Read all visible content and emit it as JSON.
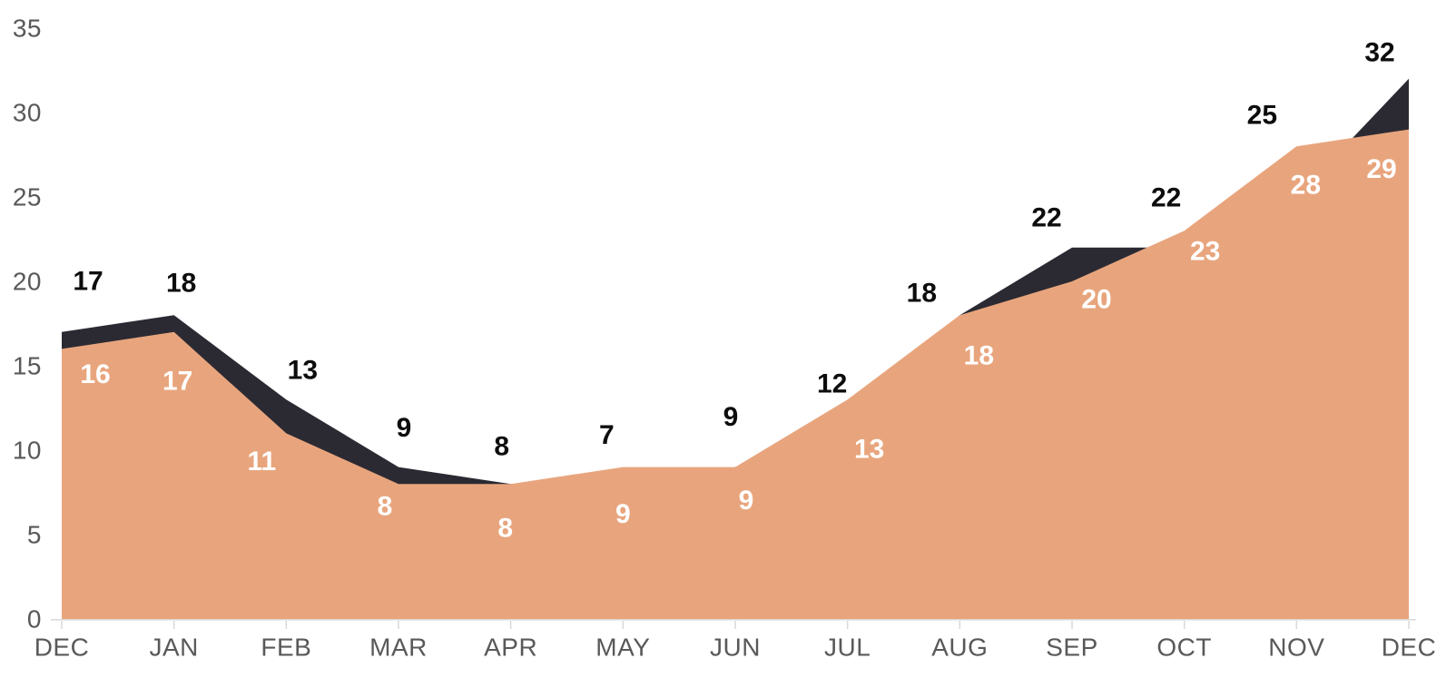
{
  "chart_data": {
    "type": "area",
    "subtype": "overlapping",
    "title": "",
    "xlabel": "",
    "ylabel": "",
    "categories": [
      "DEC",
      "JAN",
      "FEB",
      "MAR",
      "APR",
      "MAY",
      "JUN",
      "JUL",
      "AUG",
      "SEP",
      "OCT",
      "NOV",
      "DEC"
    ],
    "series": [
      {
        "id": "dark",
        "values": [
          17,
          18,
          13,
          9,
          8,
          7,
          9,
          12,
          18,
          22,
          22,
          25,
          32
        ],
        "fill_color": "#2b2a33",
        "label_color": "#0d0d0d"
      },
      {
        "id": "salmon",
        "values": [
          16,
          17,
          11,
          8,
          8,
          9,
          9,
          13,
          18,
          20,
          23,
          28,
          29
        ],
        "fill_color": "#e8a57d",
        "label_color": "#ffffff"
      }
    ],
    "y_axis": {
      "min": 0,
      "max": 35,
      "step": 5,
      "tick_labels": [
        "0",
        "5",
        "10",
        "15",
        "20",
        "25",
        "30",
        "35"
      ]
    },
    "grid": false,
    "legend": false,
    "data_labels_shown": true,
    "colors": {
      "axis_text": "#595959",
      "axis_line": "#d9d9d9",
      "background": "#ffffff"
    }
  }
}
